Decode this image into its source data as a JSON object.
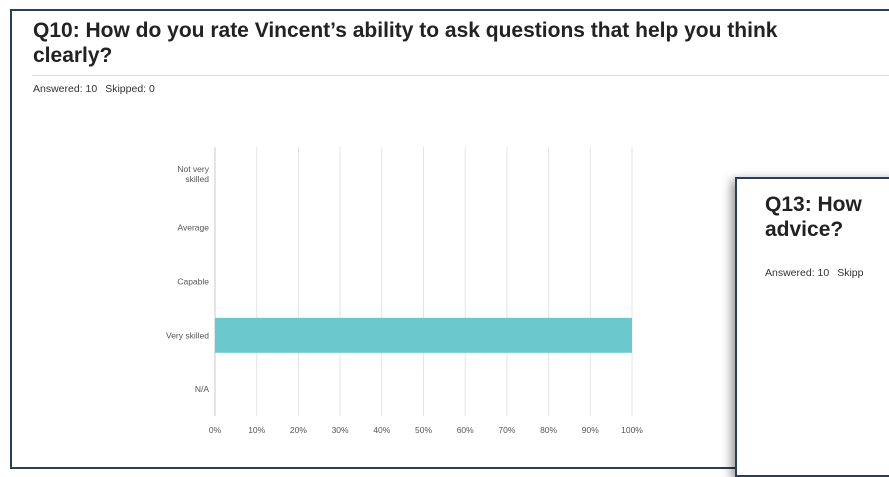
{
  "q10": {
    "title": "Q10: How do you rate Vincent’s ability to ask questions that help you think clearly?",
    "answered": "Answered: 10",
    "skipped": "Skipped: 0"
  },
  "q13": {
    "title": "Q13: How advice?",
    "answered": "Answered: 10",
    "skipped": "Skipp"
  },
  "colors": {
    "bar": "#6cc9cb",
    "frame": "#2b3e57",
    "grid": "#e4e4e4"
  },
  "chart_data": {
    "type": "bar",
    "orientation": "horizontal",
    "categories": [
      "Not very skilled",
      "Average",
      "Capable",
      "Very skilled",
      "N/A"
    ],
    "category_lines": [
      [
        "Not very",
        "skilled"
      ],
      [
        "Average"
      ],
      [
        "Capable"
      ],
      [
        "Very skilled"
      ],
      [
        "N/A"
      ]
    ],
    "values": [
      0,
      0,
      0,
      100,
      0
    ],
    "value_unit": "%",
    "xlim": [
      0,
      100
    ],
    "ticks": [
      "0%",
      "10%",
      "20%",
      "30%",
      "40%",
      "50%",
      "60%",
      "70%",
      "80%",
      "90%",
      "100%"
    ],
    "grid": true
  }
}
